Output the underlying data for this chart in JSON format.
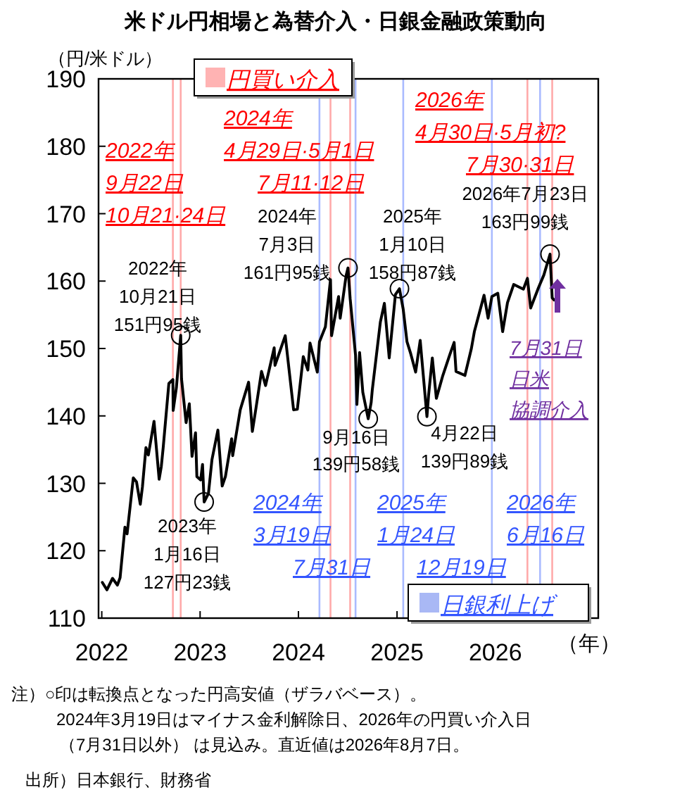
{
  "chart_data": {
    "type": "line",
    "title": "米ドル円相場と為替介入・日銀金融政策動向",
    "ylabel": "（円/米ドル）",
    "xlabel": "（年）",
    "xlim": [
      "2021-12-20",
      "2027-01-18"
    ],
    "xticks": [
      {
        "value": "2022-01-01",
        "label": "2022"
      },
      {
        "value": "2023-01-01",
        "label": "2023"
      },
      {
        "value": "2024-01-01",
        "label": "2024"
      },
      {
        "value": "2025-01-01",
        "label": "2025"
      },
      {
        "value": "2026-01-01",
        "label": "2026"
      }
    ],
    "ylim": [
      110,
      190
    ],
    "yticks": [
      110,
      120,
      130,
      140,
      150,
      160,
      170,
      180,
      190
    ],
    "grid": false,
    "marker": "none",
    "line_style": "solid",
    "series": [
      {
        "color": "#000000",
        "x": [
          "2022-01-03",
          "2022-01-20",
          "2022-02-10",
          "2022-02-28",
          "2022-03-10",
          "2022-03-28",
          "2022-04-05",
          "2022-04-28",
          "2022-05-10",
          "2022-05-24",
          "2022-06-01",
          "2022-06-14",
          "2022-06-23",
          "2022-07-14",
          "2022-08-02",
          "2022-08-10",
          "2022-08-17",
          "2022-09-07",
          "2022-09-22",
          "2022-09-23",
          "2022-10-05",
          "2022-10-21",
          "2022-10-24",
          "2022-11-10",
          "2022-11-22",
          "2022-12-02",
          "2022-12-15",
          "2022-12-20",
          "2023-01-03",
          "2023-01-10",
          "2023-01-16",
          "2023-02-01",
          "2023-02-14",
          "2023-03-08",
          "2023-03-24",
          "2023-04-05",
          "2023-04-28",
          "2023-05-02",
          "2023-05-30",
          "2023-06-30",
          "2023-07-14",
          "2023-07-28",
          "2023-08-17",
          "2023-09-01",
          "2023-10-03",
          "2023-10-06",
          "2023-11-13",
          "2023-12-14",
          "2023-12-28",
          "2024-01-19",
          "2024-02-05",
          "2024-02-13",
          "2024-03-11",
          "2024-03-19",
          "2024-04-10",
          "2024-04-29",
          "2024-05-03",
          "2024-05-29",
          "2024-06-04",
          "2024-06-26",
          "2024-07-03",
          "2024-07-11",
          "2024-07-31",
          "2024-08-05",
          "2024-08-15",
          "2024-08-27",
          "2024-09-16",
          "2024-09-27",
          "2024-10-01",
          "2024-10-31",
          "2024-11-15",
          "2024-12-03",
          "2024-12-26",
          "2025-01-10",
          "2025-01-24",
          "2025-02-07",
          "2025-02-21",
          "2025-03-11",
          "2025-03-28",
          "2025-04-22",
          "2025-04-28",
          "2025-05-12",
          "2025-05-27",
          "2025-06-20",
          "2025-07-16",
          "2025-08-01",
          "2025-08-08",
          "2025-09-10",
          "2025-10-04",
          "2025-10-15",
          "2025-11-20",
          "2025-12-05",
          "2025-12-19",
          "2026-01-10",
          "2026-01-28",
          "2026-02-15",
          "2026-03-10",
          "2026-04-15",
          "2026-04-30",
          "2026-05-12",
          "2026-06-10",
          "2026-06-30",
          "2026-07-23",
          "2026-07-31",
          "2026-08-07"
        ],
        "values": [
          115.3,
          114.2,
          115.9,
          114.9,
          116.0,
          123.5,
          122.5,
          130.8,
          130.2,
          126.9,
          129.5,
          135.3,
          134.2,
          139.2,
          130.6,
          132.5,
          135.3,
          144.8,
          145.4,
          140.8,
          144.2,
          151.95,
          145.5,
          139.0,
          141.8,
          134.0,
          137.5,
          131.0,
          130.5,
          132.8,
          127.23,
          128.5,
          133.5,
          137.9,
          129.6,
          131.0,
          136.6,
          134.1,
          140.9,
          145.0,
          137.7,
          141.3,
          146.6,
          144.5,
          150.1,
          147.5,
          151.9,
          140.9,
          141.0,
          148.8,
          146.8,
          150.8,
          146.5,
          151.0,
          153.2,
          160.2,
          151.9,
          157.7,
          154.5,
          160.8,
          161.95,
          157.4,
          149.0,
          141.7,
          149.4,
          143.5,
          139.58,
          142.0,
          143.8,
          153.9,
          156.7,
          148.6,
          158.0,
          158.87,
          155.8,
          151.0,
          149.2,
          146.5,
          151.2,
          139.89,
          143.0,
          148.6,
          142.6,
          146.0,
          149.1,
          150.9,
          146.6,
          146.0,
          150.0,
          152.5,
          157.9,
          154.5,
          157.7,
          158.2,
          152.5,
          156.8,
          159.5,
          158.8,
          160.4,
          156.0,
          159.0,
          160.9,
          163.99,
          157.5,
          157.2
        ]
      }
    ],
    "ref_lines": [
      {
        "axis": "x",
        "value": "2022-09-22",
        "color": "#ffaaaa"
      },
      {
        "axis": "x",
        "value": "2022-10-21",
        "color": "#ffaaaa"
      },
      {
        "axis": "x",
        "value": "2024-04-29",
        "color": "#ffaaaa"
      },
      {
        "axis": "x",
        "value": "2024-07-11",
        "color": "#ffaaaa"
      },
      {
        "axis": "x",
        "value": "2026-04-30",
        "color": "#ffaaaa"
      },
      {
        "axis": "x",
        "value": "2026-07-31",
        "color": "#ffaaaa"
      },
      {
        "axis": "x",
        "value": "2024-03-19",
        "color": "#aabbff"
      },
      {
        "axis": "x",
        "value": "2024-07-31",
        "color": "#aabbff"
      },
      {
        "axis": "x",
        "value": "2025-01-24",
        "color": "#aabbff"
      },
      {
        "axis": "x",
        "value": "2025-12-19",
        "color": "#aabbff"
      },
      {
        "axis": "x",
        "value": "2026-06-16",
        "color": "#aabbff"
      }
    ],
    "annotations": [
      "円買い介入",
      "日銀利上げ",
      "2022年\n9月22日\n10月21·24日",
      "2024年\n4月29日·5月1日\n7月11·12日",
      "2026年\n4月30日·5月初?\n7月30·31日",
      "2024年\n3月19日\n7月31日",
      "2025年\n1月24日\n12月19日",
      "2026年\n6月16日",
      "7月31日",
      "日米",
      "協調介入",
      {
        "text": "2022年\n10月21日\n151円95銭",
        "x": "2022-10-21",
        "y": 151.95
      },
      {
        "text": "2023年\n1月16日\n127円23銭",
        "x": "2023-01-16",
        "y": 127.23
      },
      {
        "text": "2024年\n7月3日\n161円95銭",
        "x": "2024-07-03",
        "y": 161.95
      },
      {
        "text": "9月16日\n139円58銭",
        "x": "2024-09-16",
        "y": 139.58
      },
      {
        "text": "2025年\n1月10日\n158円87銭",
        "x": "2025-01-10",
        "y": 158.87
      },
      {
        "text": "4月22日\n139円89銭",
        "x": "2025-04-22",
        "y": 139.89
      },
      {
        "text": "2026年7月23日\n163円99銭",
        "x": "2026-07-23",
        "y": 163.99
      },
      "注）○印は転換点となった円高安値（ザラバベース）。",
      "2024年3月19日はマイナス金利解除日、2026年の円買い介入日",
      "（7月31日以外） は見込み。直近値は2026年8月7日。",
      "出所）日本銀行、財務省"
    ]
  }
}
